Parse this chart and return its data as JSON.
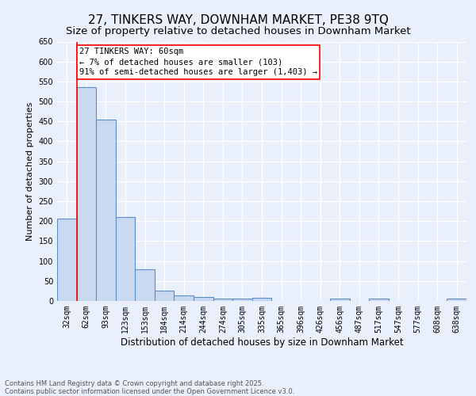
{
  "title": "27, TINKERS WAY, DOWNHAM MARKET, PE38 9TQ",
  "subtitle": "Size of property relative to detached houses in Downham Market",
  "xlabel": "Distribution of detached houses by size in Downham Market",
  "ylabel": "Number of detached properties",
  "footer1": "Contains HM Land Registry data © Crown copyright and database right 2025.",
  "footer2": "Contains public sector information licensed under the Open Government Licence v3.0.",
  "categories": [
    "32sqm",
    "62sqm",
    "93sqm",
    "123sqm",
    "153sqm",
    "184sqm",
    "214sqm",
    "244sqm",
    "274sqm",
    "305sqm",
    "335sqm",
    "365sqm",
    "396sqm",
    "426sqm",
    "456sqm",
    "487sqm",
    "517sqm",
    "547sqm",
    "577sqm",
    "608sqm",
    "638sqm"
  ],
  "values": [
    207,
    535,
    455,
    211,
    80,
    25,
    13,
    10,
    6,
    6,
    7,
    0,
    0,
    0,
    5,
    0,
    5,
    0,
    0,
    0,
    5
  ],
  "bar_color": "#c9d9f0",
  "bar_edge_color": "#5b8fc9",
  "red_line_bin": 1,
  "annotation_text": "27 TINKERS WAY: 60sqm\n← 7% of detached houses are smaller (103)\n91% of semi-detached houses are larger (1,403) →",
  "ylim": [
    0,
    650
  ],
  "yticks": [
    0,
    50,
    100,
    150,
    200,
    250,
    300,
    350,
    400,
    450,
    500,
    550,
    600,
    650
  ],
  "bg_color": "#eaf0fb",
  "plot_bg_color": "#eaf0fb",
  "grid_color": "#ffffff",
  "title_fontsize": 11,
  "subtitle_fontsize": 9.5,
  "tick_fontsize": 7,
  "ylabel_fontsize": 8,
  "xlabel_fontsize": 8.5,
  "footer_fontsize": 6,
  "ann_fontsize": 7.5
}
